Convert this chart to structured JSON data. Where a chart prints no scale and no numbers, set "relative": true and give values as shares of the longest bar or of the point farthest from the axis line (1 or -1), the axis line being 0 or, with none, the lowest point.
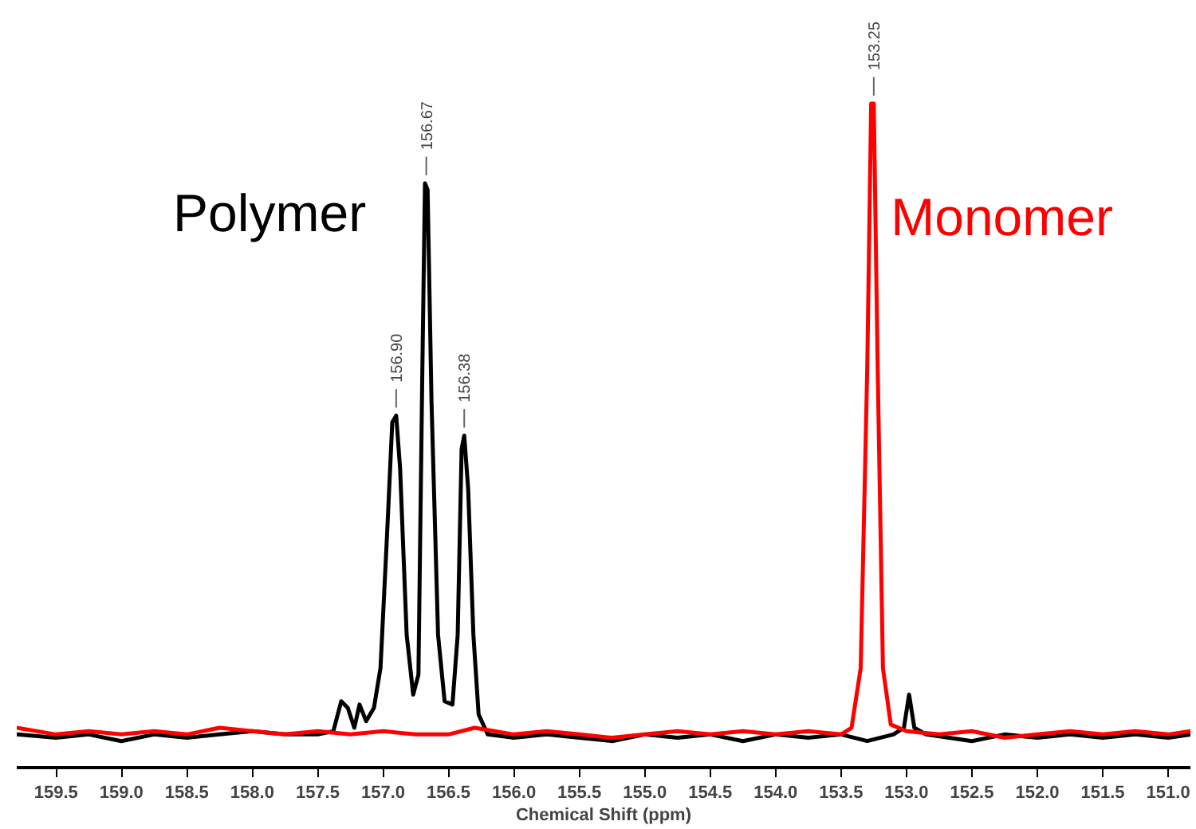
{
  "chart_data": {
    "type": "line",
    "relative": true,
    "xlabel": "Chemical Shift (ppm)",
    "xlim": [
      159.8,
      150.83
    ],
    "xticks": [
      159.5,
      {
        "value": 159,
        "label": "159.0"
      },
      158.5,
      {
        "value": 158,
        "label": "158.0"
      },
      157.5,
      {
        "value": 157,
        "label": "157.0"
      },
      156.5,
      {
        "value": 156,
        "label": "156.0"
      },
      155.5,
      {
        "value": 155,
        "label": "155.0"
      },
      154.5,
      {
        "value": 154,
        "label": "154.0"
      },
      153.5,
      {
        "value": 153,
        "label": "153.0"
      },
      152.5,
      {
        "value": 152,
        "label": "152.0"
      },
      151.5,
      {
        "value": 151,
        "label": "151.0"
      }
    ],
    "grid": false,
    "marker": "none",
    "line_style": "solid",
    "series": [
      {
        "name": "Polymer",
        "color": "#000000",
        "x": [
          159.8,
          159.5,
          159.25,
          159.0,
          158.75,
          158.5,
          158.25,
          158.0,
          157.75,
          157.5,
          157.38,
          157.32,
          157.27,
          157.22,
          157.18,
          157.13,
          157.07,
          157.02,
          156.97,
          156.93,
          156.9,
          156.87,
          156.82,
          156.77,
          156.73,
          156.7,
          156.68,
          156.66,
          156.63,
          156.58,
          156.53,
          156.47,
          156.43,
          156.4,
          156.38,
          156.35,
          156.31,
          156.27,
          156.2,
          156.0,
          155.75,
          155.5,
          155.25,
          155.0,
          154.75,
          154.5,
          154.25,
          154.0,
          153.75,
          153.5,
          153.3,
          153.1,
          153.02,
          152.98,
          152.94,
          152.85,
          152.5,
          152.25,
          152.0,
          151.75,
          151.5,
          151.25,
          151.0,
          150.83
        ],
        "values": [
          0.05,
          0.045,
          0.05,
          0.04,
          0.05,
          0.045,
          0.05,
          0.055,
          0.05,
          0.05,
          0.055,
          0.1,
          0.09,
          0.06,
          0.095,
          0.07,
          0.09,
          0.15,
          0.35,
          0.52,
          0.53,
          0.45,
          0.2,
          0.11,
          0.14,
          0.6,
          0.88,
          0.87,
          0.55,
          0.2,
          0.1,
          0.095,
          0.2,
          0.48,
          0.5,
          0.42,
          0.2,
          0.08,
          0.05,
          0.045,
          0.05,
          0.045,
          0.04,
          0.05,
          0.045,
          0.05,
          0.04,
          0.05,
          0.045,
          0.05,
          0.04,
          0.05,
          0.06,
          0.11,
          0.06,
          0.05,
          0.04,
          0.05,
          0.045,
          0.05,
          0.045,
          0.05,
          0.045,
          0.05
        ]
      },
      {
        "name": "Monomer",
        "color": "#ff0000",
        "x": [
          159.8,
          159.5,
          159.25,
          159.0,
          158.75,
          158.5,
          158.25,
          158.0,
          157.75,
          157.5,
          157.25,
          157.0,
          156.75,
          156.5,
          156.3,
          156.0,
          155.75,
          155.5,
          155.25,
          155.0,
          154.75,
          154.5,
          154.25,
          154.0,
          153.75,
          153.5,
          153.42,
          153.35,
          153.3,
          153.27,
          153.25,
          153.22,
          153.18,
          153.12,
          153.0,
          152.75,
          152.5,
          152.25,
          152.0,
          151.75,
          151.5,
          151.25,
          151.0,
          150.83
        ],
        "values": [
          0.06,
          0.05,
          0.055,
          0.05,
          0.055,
          0.05,
          0.06,
          0.055,
          0.05,
          0.055,
          0.05,
          0.055,
          0.05,
          0.05,
          0.06,
          0.05,
          0.055,
          0.05,
          0.045,
          0.05,
          0.055,
          0.05,
          0.055,
          0.05,
          0.055,
          0.05,
          0.06,
          0.15,
          0.6,
          1.0,
          1.0,
          0.6,
          0.15,
          0.065,
          0.055,
          0.05,
          0.055,
          0.045,
          0.05,
          0.055,
          0.05,
          0.055,
          0.05,
          0.055
        ]
      }
    ],
    "annotations": [
      {
        "text": "156.90",
        "x": 156.9,
        "y": 0.53
      },
      {
        "text": "156.67",
        "x": 156.67,
        "y": 0.88
      },
      {
        "text": "156.38",
        "x": 156.38,
        "y": 0.5
      },
      {
        "text": "153.25",
        "x": 153.25,
        "y": 1.0
      }
    ]
  }
}
